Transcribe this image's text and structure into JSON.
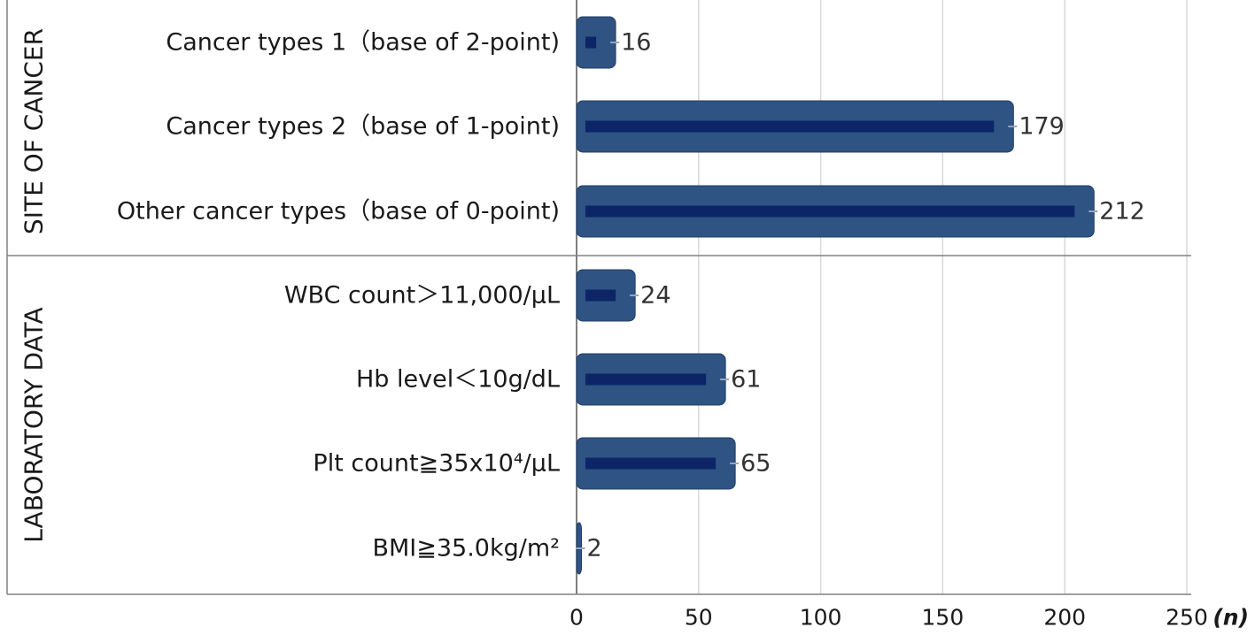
{
  "chart_data": {
    "type": "bar",
    "orientation": "horizontal",
    "groups": [
      {
        "label": "SITE OF CANCER",
        "categories": [
          "Cancer types 1（base of 2-point)",
          "Cancer types 2（base of 1-point)",
          "Other cancer types（base of 0-point)"
        ],
        "values": [
          16,
          179,
          212
        ]
      },
      {
        "label": "LABORATORY DATA",
        "categories": [
          "WBC count＞11,000/μL",
          "Hb level＜10g/dL",
          "Plt count≧35x10⁴/μL",
          "BMI≧35.0kg/m²"
        ],
        "values": [
          24,
          61,
          65,
          2
        ]
      }
    ],
    "x_unit": "(n)",
    "xlim": [
      0,
      250
    ],
    "x_ticks": [
      0,
      50,
      100,
      150,
      200,
      250
    ],
    "grid": true,
    "colors": {
      "bar": "#2f5383",
      "bar_stroke": "#1f3d66",
      "bar_inner": "#0b2566",
      "grid": "#d9d9d9",
      "divider": "#808080"
    }
  }
}
